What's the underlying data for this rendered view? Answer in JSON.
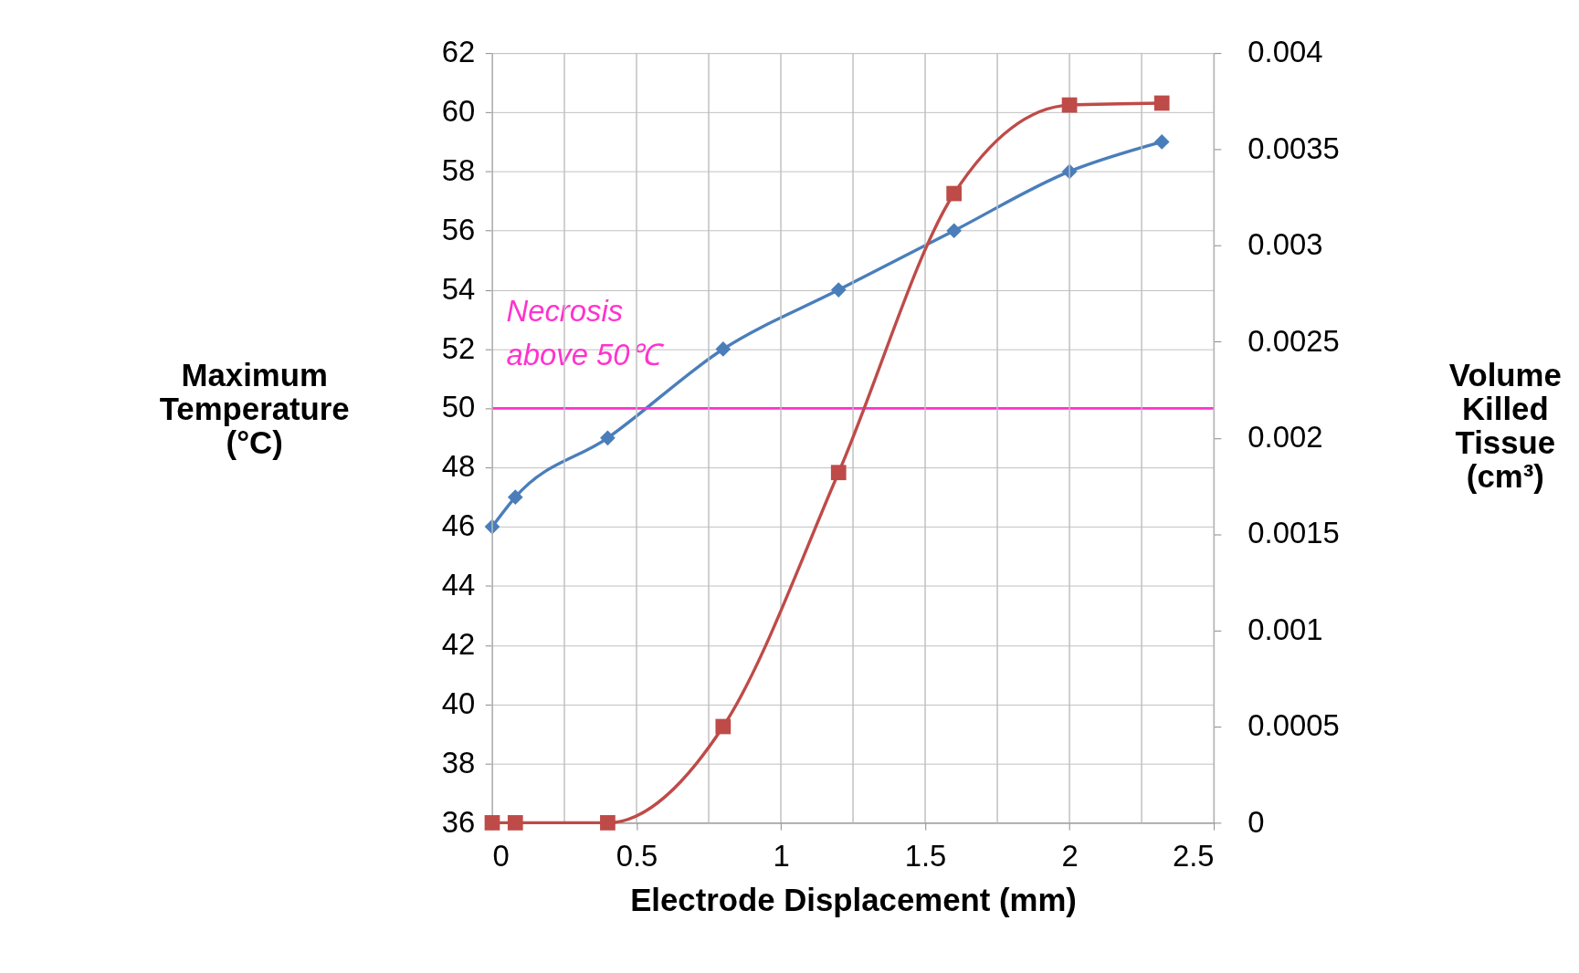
{
  "chart_data": {
    "type": "line",
    "xlabel": "Electrode Displacement (mm)",
    "ylabel": "Maximum\nTemperature\n(°C)",
    "y2label": "Volume\nKilled\nTissue\n(cm³)",
    "series": [
      {
        "color": "#4a7ebb",
        "marker": "diamond",
        "x": [
          0,
          0.08,
          0.4,
          0.8,
          1.2,
          1.6,
          2.0,
          2.32
        ],
        "values": [
          46,
          47,
          49,
          52,
          54,
          56,
          58,
          59
        ]
      },
      {
        "color": "#be4b48",
        "marker": "square",
        "axis": "y2",
        "x": [
          0,
          0.08,
          0.4,
          0.8,
          1.2,
          1.6,
          2.0,
          2.32
        ],
        "values": [
          0,
          0,
          0,
          0.0005,
          0.00182,
          0.00327,
          0.00373,
          0.00374
        ]
      }
    ],
    "xlim": [
      0,
      2.5
    ],
    "xticks": [
      0,
      0.5,
      1,
      1.5,
      2,
      2.5
    ],
    "ylim": [
      36,
      62
    ],
    "yticks": [
      36,
      38,
      40,
      42,
      44,
      46,
      48,
      50,
      52,
      54,
      56,
      58,
      60,
      62
    ],
    "y2lim": [
      0,
      0.004
    ],
    "y2ticks": [
      0,
      0.0005,
      0.001,
      0.0015,
      0.002,
      0.0025,
      0.003,
      0.0035,
      0.004
    ],
    "ref_lines": [
      {
        "axis": "y",
        "value": 50,
        "color": "#ff33cc",
        "line_style": "solid"
      }
    ],
    "annotations": [
      "Necrosis\nabove 50℃"
    ],
    "grid": true
  }
}
